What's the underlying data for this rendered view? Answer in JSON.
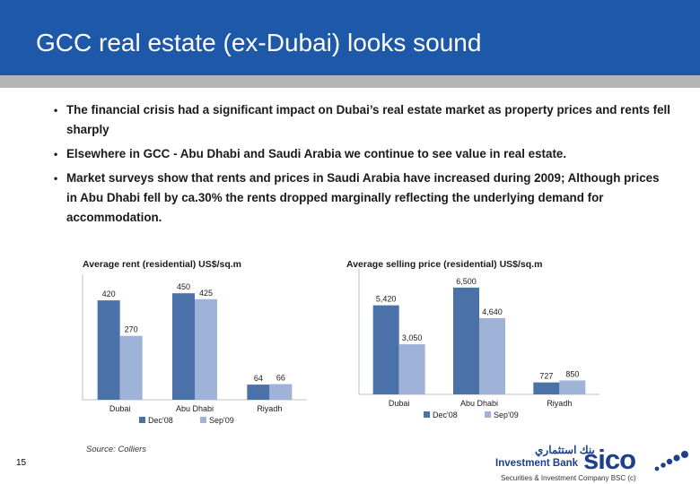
{
  "header": {
    "title": "GCC real estate (ex-Dubai) looks sound"
  },
  "bullets": [
    "The financial crisis had a significant impact on Dubai’s real estate market as property prices and rents fell sharply",
    "Elsewhere in GCC - Abu Dhabi and Saudi Arabia we continue to see value in real estate.",
    "Market surveys show that rents and prices in Saudi Arabia have increased during 2009; Although prices in Abu Dhabi fell by ca.30% the rents dropped marginally reflecting the underlying demand for accommodation."
  ],
  "chart_data": [
    {
      "type": "bar",
      "title": "Average rent (residential) US$/sq.m",
      "categories": [
        "Dubai",
        "Abu Dhabi",
        "Riyadh"
      ],
      "series": [
        {
          "name": "Dec'08",
          "values": [
            420,
            450,
            64
          ],
          "labels": [
            "420",
            "450",
            "64"
          ],
          "color": "#4a72a8"
        },
        {
          "name": "Sep'09",
          "values": [
            270,
            425,
            66
          ],
          "labels": [
            "270",
            "425",
            "66"
          ],
          "color": "#9fb2d8"
        }
      ],
      "ylim": [
        0,
        500
      ],
      "grid": false,
      "legend": "bottom"
    },
    {
      "type": "bar",
      "title": "Average selling price (residential) US$/sq.m",
      "categories": [
        "Dubai",
        "Abu Dhabi",
        "Riyadh"
      ],
      "series": [
        {
          "name": "Dec'08",
          "values": [
            5420,
            6500,
            727
          ],
          "labels": [
            "5,420",
            "6,500",
            "727"
          ],
          "color": "#4a72a8"
        },
        {
          "name": "Sep'09",
          "values": [
            3050,
            4640,
            850
          ],
          "labels": [
            "3,050",
            "4,640",
            "850"
          ],
          "color": "#9fb2d8"
        }
      ],
      "ylim": [
        0,
        7200
      ],
      "grid": false,
      "legend": "bottom"
    }
  ],
  "footer": {
    "source": "Source: Colliers",
    "page_number": "15"
  },
  "logo": {
    "arabic": "بنك استثماري",
    "investment_bank": "Investment Bank",
    "brand": "sico",
    "tagline": "Securities & Investment Company BSC (c)"
  }
}
